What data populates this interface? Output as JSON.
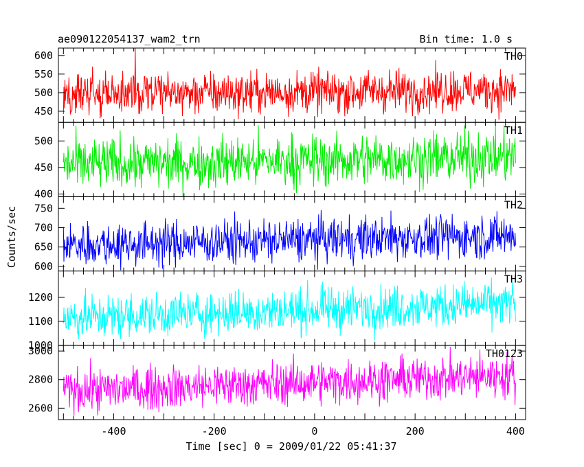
{
  "chart_data": {
    "type": "line",
    "title_left": "ae090122054137_wam2_trn",
    "title_right": "Bin time: 1.0 s",
    "xlabel": "Time [sec] 0 = 2009/01/22 05:41:37",
    "ylabel": "Counts/sec",
    "xlim": [
      -510,
      420
    ],
    "xticks": [
      -400,
      -200,
      0,
      200,
      400
    ],
    "x_start": -500,
    "x_end": 400,
    "bin": 1.0,
    "panels": [
      {
        "name": "TH0",
        "color": "#ff0000",
        "ylim": [
          420,
          620
        ],
        "yticks": [
          450,
          500,
          550,
          600
        ],
        "level_start": 495,
        "level_end": 508,
        "spread": 28,
        "spikes": [
          {
            "x": -357,
            "y": 625
          }
        ]
      },
      {
        "name": "TH1",
        "color": "#00ee00",
        "ylim": [
          395,
          535
        ],
        "yticks": [
          400,
          450,
          500
        ],
        "level_start": 455,
        "level_end": 470,
        "spread": 24,
        "spikes": []
      },
      {
        "name": "TH2",
        "color": "#0000ff",
        "ylim": [
          588,
          780
        ],
        "yticks": [
          600,
          650,
          700,
          750
        ],
        "level_start": 655,
        "level_end": 680,
        "spread": 28,
        "spikes": []
      },
      {
        "name": "TH3",
        "color": "#00ffff",
        "ylim": [
          1000,
          1310
        ],
        "yticks": [
          1000,
          1100,
          1200
        ],
        "level_start": 1115,
        "level_end": 1175,
        "spread": 45,
        "spikes": []
      },
      {
        "name": "TH0123",
        "color": "#ff00ff",
        "ylim": [
          2520,
          3040
        ],
        "yticks": [
          2600,
          2800,
          3000
        ],
        "level_start": 2720,
        "level_end": 2830,
        "spread": 75,
        "spikes": []
      }
    ]
  }
}
